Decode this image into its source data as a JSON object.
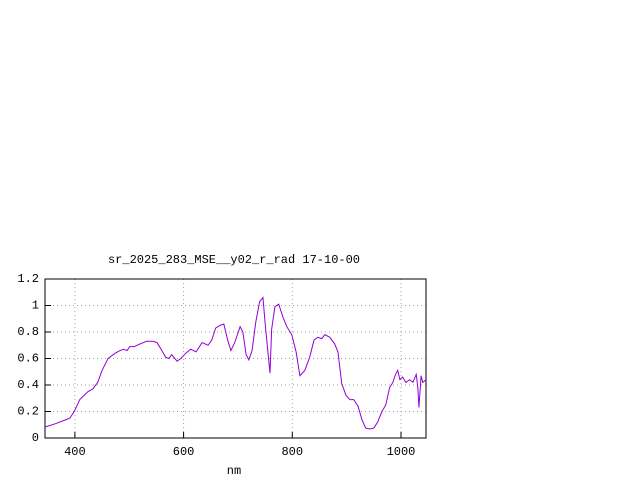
{
  "chart_data": {
    "type": "line",
    "title": "sr_2025_283_MSE__y02_r_rad 17-10-00",
    "xlabel": "nm",
    "x": [
      345,
      363,
      382,
      391,
      400,
      409,
      424,
      433,
      442,
      450,
      461,
      474,
      483,
      490,
      496,
      501,
      509,
      520,
      532,
      544,
      551,
      560,
      567,
      573,
      578,
      588,
      595,
      604,
      613,
      623,
      634,
      645,
      652,
      659,
      667,
      674,
      681,
      687,
      694,
      704,
      709,
      715,
      720,
      726,
      733,
      740,
      746,
      751,
      759,
      762,
      768,
      775,
      783,
      790,
      799,
      807,
      814,
      823,
      832,
      840,
      847,
      854,
      860,
      869,
      878,
      884,
      891,
      899,
      906,
      913,
      921,
      928,
      935,
      943,
      950,
      957,
      965,
      972,
      979,
      985,
      990,
      994,
      998,
      1003,
      1009,
      1016,
      1022,
      1028,
      1031,
      1033,
      1037,
      1040,
      1046
    ],
    "series": [
      {
        "color": "#9400d3",
        "values": [
          0.083,
          0.106,
          0.136,
          0.15,
          0.21,
          0.29,
          0.35,
          0.37,
          0.42,
          0.51,
          0.6,
          0.64,
          0.66,
          0.67,
          0.66,
          0.69,
          0.69,
          0.71,
          0.73,
          0.73,
          0.72,
          0.66,
          0.61,
          0.6,
          0.63,
          0.58,
          0.6,
          0.64,
          0.67,
          0.65,
          0.72,
          0.7,
          0.74,
          0.83,
          0.85,
          0.86,
          0.74,
          0.66,
          0.72,
          0.84,
          0.8,
          0.63,
          0.59,
          0.66,
          0.88,
          1.03,
          1.06,
          0.82,
          0.49,
          0.82,
          0.99,
          1.01,
          0.91,
          0.84,
          0.78,
          0.65,
          0.47,
          0.51,
          0.61,
          0.74,
          0.76,
          0.75,
          0.78,
          0.76,
          0.71,
          0.65,
          0.41,
          0.32,
          0.29,
          0.29,
          0.24,
          0.14,
          0.075,
          0.068,
          0.075,
          0.12,
          0.2,
          0.25,
          0.38,
          0.42,
          0.48,
          0.51,
          0.44,
          0.46,
          0.42,
          0.44,
          0.42,
          0.48,
          0.38,
          0.23,
          0.47,
          0.42,
          0.44
        ]
      }
    ],
    "xlim": [
      345,
      1046
    ],
    "xticks": [
      400,
      600,
      800,
      1000
    ],
    "ylim": [
      0,
      1.2
    ],
    "yticks": [
      0,
      0.2,
      0.4,
      0.6,
      0.8,
      1,
      1.2
    ],
    "grid": true
  }
}
